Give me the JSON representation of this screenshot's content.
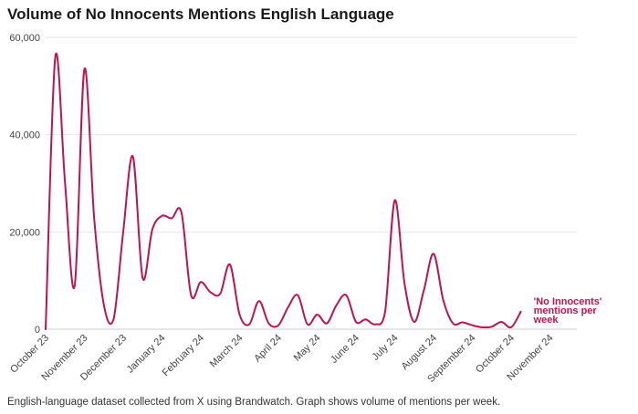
{
  "title": "Volume of No Innocents Mentions English Language",
  "caption": "English-language dataset collected from X using Brandwatch. Graph shows volume of mentions per week.",
  "colors": {
    "series": "#c0124f"
  },
  "chart_data": {
    "type": "line",
    "title": "Volume of No Innocents Mentions English Language",
    "xlabel": "",
    "ylabel": "",
    "ylim": [
      0,
      60000
    ],
    "yticks": [
      0,
      20000,
      40000,
      60000
    ],
    "ytick_labels": [
      "0",
      "20,000",
      "40,000",
      "60,000"
    ],
    "xtick_labels": [
      "October 23",
      "November 23",
      "December 23",
      "January 24",
      "February 24",
      "March 24",
      "April 24",
      "May 24",
      "June 24",
      "July 24",
      "August 24",
      "September 24",
      "October 24",
      "November 24"
    ],
    "grid": true,
    "series": [
      {
        "name": "'No Innocents' mentions per week",
        "x": [
          0,
          0.25,
          0.5,
          0.75,
          1.0,
          1.25,
          1.5,
          1.75,
          2.0,
          2.25,
          2.5,
          2.75,
          3.0,
          3.25,
          3.5,
          3.75,
          4.0,
          4.25,
          4.5,
          4.75,
          5.0,
          5.25,
          5.5,
          5.75,
          6.0,
          6.25,
          6.5,
          6.75,
          7.0,
          7.25,
          7.5,
          7.75,
          8.0,
          8.25,
          8.5,
          8.75,
          9.0,
          9.25,
          9.5,
          9.75,
          10.0,
          10.25,
          10.5,
          10.75,
          11.0,
          11.25,
          11.5,
          11.75,
          12.0,
          12.25
        ],
        "y": [
          0,
          56000,
          30000,
          9000,
          53500,
          23000,
          5000,
          2000,
          20000,
          35500,
          10500,
          20500,
          23300,
          22800,
          24000,
          7000,
          9700,
          7600,
          7300,
          13300,
          3000,
          1000,
          5800,
          1200,
          800,
          4500,
          7000,
          1000,
          3000,
          1200,
          5000,
          7000,
          1500,
          2000,
          1000,
          3500,
          26500,
          9500,
          1500,
          8000,
          15500,
          6000,
          1200,
          1400,
          800,
          400,
          500,
          1500,
          400,
          3600
        ]
      }
    ],
    "xlim": [
      0,
      13
    ]
  }
}
